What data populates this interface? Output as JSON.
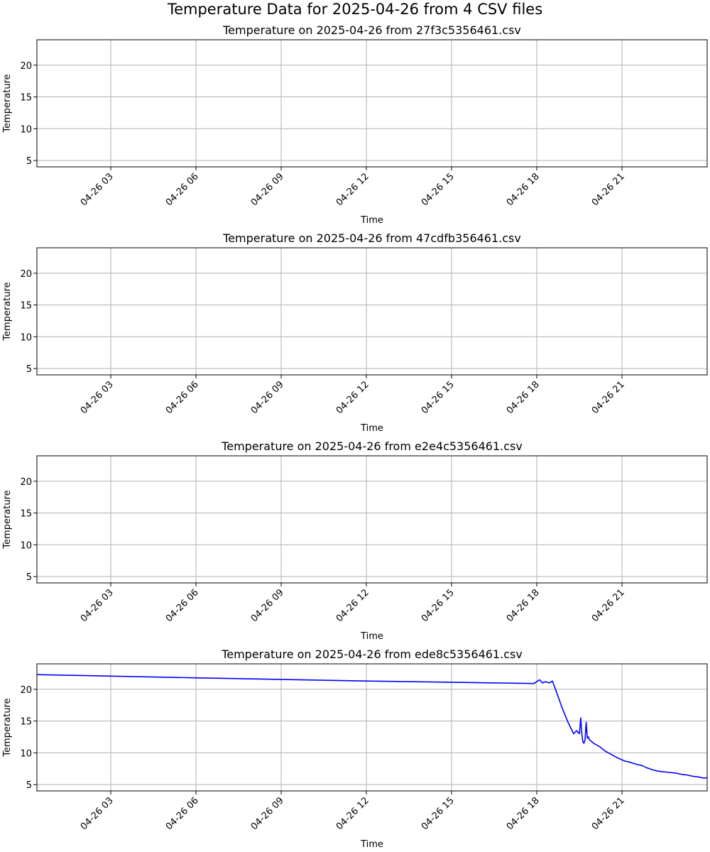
{
  "figure": {
    "suptitle": "Temperature Data for 2025-04-26 from 4 CSV files"
  },
  "chart_data": [
    {
      "type": "line",
      "title": "Temperature on 2025-04-26 from 27f3c5356461.csv",
      "xlabel": "Time",
      "ylabel": "Temperature",
      "x_tick_labels": [
        "04-26 03",
        "04-26 06",
        "04-26 09",
        "04-26 12",
        "04-26 15",
        "04-26 18",
        "04-26 21"
      ],
      "x_tick_hours": [
        3,
        6,
        9,
        12,
        15,
        18,
        21
      ],
      "y_ticks": [
        5,
        10,
        15,
        20
      ],
      "xlim_hours": [
        0.4,
        24
      ],
      "ylim": [
        4.0,
        24.0
      ],
      "grid": true,
      "series": []
    },
    {
      "type": "line",
      "title": "Temperature on 2025-04-26 from 47cdfb356461.csv",
      "xlabel": "Time",
      "ylabel": "Temperature",
      "x_tick_labels": [
        "04-26 03",
        "04-26 06",
        "04-26 09",
        "04-26 12",
        "04-26 15",
        "04-26 18",
        "04-26 21"
      ],
      "x_tick_hours": [
        3,
        6,
        9,
        12,
        15,
        18,
        21
      ],
      "y_ticks": [
        5,
        10,
        15,
        20
      ],
      "xlim_hours": [
        0.4,
        24
      ],
      "ylim": [
        4.0,
        24.0
      ],
      "grid": true,
      "series": []
    },
    {
      "type": "line",
      "title": "Temperature on 2025-04-26 from e2e4c5356461.csv",
      "xlabel": "Time",
      "ylabel": "Temperature",
      "x_tick_labels": [
        "04-26 03",
        "04-26 06",
        "04-26 09",
        "04-26 12",
        "04-26 15",
        "04-26 18",
        "04-26 21"
      ],
      "x_tick_hours": [
        3,
        6,
        9,
        12,
        15,
        18,
        21
      ],
      "y_ticks": [
        5,
        10,
        15,
        20
      ],
      "xlim_hours": [
        0.4,
        24
      ],
      "ylim": [
        4.0,
        24.0
      ],
      "grid": true,
      "series": []
    },
    {
      "type": "line",
      "title": "Temperature on 2025-04-26 from ede8c5356461.csv",
      "xlabel": "Time",
      "ylabel": "Temperature",
      "x_tick_labels": [
        "04-26 03",
        "04-26 06",
        "04-26 09",
        "04-26 12",
        "04-26 15",
        "04-26 18",
        "04-26 21"
      ],
      "x_tick_hours": [
        3,
        6,
        9,
        12,
        15,
        18,
        21
      ],
      "y_ticks": [
        5,
        10,
        15,
        20
      ],
      "xlim_hours": [
        0.4,
        24
      ],
      "ylim": [
        4.0,
        24.0
      ],
      "grid": true,
      "series": [
        {
          "color": "#0000ff",
          "x_hours": [
            0.4,
            6.0,
            12.0,
            17.9,
            18.1,
            18.2,
            18.3,
            18.45,
            18.55,
            18.7,
            18.9,
            19.1,
            19.3,
            19.4,
            19.5,
            19.55,
            19.58,
            19.62,
            19.66,
            19.7,
            19.74,
            19.78,
            19.82,
            19.86,
            19.9,
            20.0,
            20.2,
            20.4,
            20.6,
            20.8,
            20.95,
            21.1,
            21.3,
            21.5,
            21.7,
            21.9,
            22.1,
            22.3,
            22.5,
            22.7,
            22.9,
            23.1,
            23.3,
            23.5,
            23.7,
            23.9,
            24.0
          ],
          "y": [
            22.3,
            21.8,
            21.3,
            20.9,
            21.5,
            21.0,
            21.2,
            21.0,
            21.3,
            19.5,
            17.0,
            14.8,
            13.0,
            13.5,
            13.0,
            15.5,
            13.3,
            11.8,
            11.5,
            12.0,
            14.8,
            12.3,
            12.5,
            12.0,
            11.9,
            11.5,
            11.0,
            10.3,
            9.8,
            9.3,
            9.0,
            8.7,
            8.5,
            8.2,
            8.0,
            7.6,
            7.3,
            7.1,
            7.0,
            6.9,
            6.8,
            6.6,
            6.5,
            6.3,
            6.2,
            6.0,
            6.1
          ]
        }
      ]
    }
  ]
}
